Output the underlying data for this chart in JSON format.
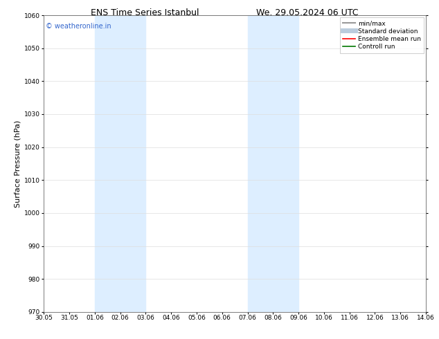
{
  "title_left": "ENS Time Series Istanbul",
  "title_right": "We. 29.05.2024 06 UTC",
  "ylabel": "Surface Pressure (hPa)",
  "ylim": [
    970,
    1060
  ],
  "yticks": [
    970,
    980,
    990,
    1000,
    1010,
    1020,
    1030,
    1040,
    1050,
    1060
  ],
  "xtick_labels": [
    "30.05",
    "31.05",
    "01.06",
    "02.06",
    "03.06",
    "04.06",
    "05.06",
    "06.06",
    "07.06",
    "08.06",
    "09.06",
    "10.06",
    "11.06",
    "12.06",
    "13.06",
    "14.06"
  ],
  "watermark": "© weatheronline.in",
  "watermark_color": "#3366cc",
  "shaded_regions": [
    {
      "xstart": 2,
      "xend": 4,
      "color": "#ddeeff"
    },
    {
      "xstart": 8,
      "xend": 10,
      "color": "#ddeeff"
    }
  ],
  "legend_items": [
    {
      "label": "min/max",
      "color": "#999999",
      "lw": 1.5,
      "linestyle": "-"
    },
    {
      "label": "Standard deviation",
      "color": "#bbccdd",
      "lw": 5,
      "linestyle": "-"
    },
    {
      "label": "Ensemble mean run",
      "color": "#ff0000",
      "lw": 1.2,
      "linestyle": "-"
    },
    {
      "label": "Controll run",
      "color": "#007700",
      "lw": 1.2,
      "linestyle": "-"
    }
  ],
  "background_color": "#ffffff",
  "grid_color": "#dddddd",
  "title_fontsize": 9,
  "tick_fontsize": 6.5,
  "ylabel_fontsize": 8,
  "legend_fontsize": 6.5,
  "watermark_fontsize": 7
}
